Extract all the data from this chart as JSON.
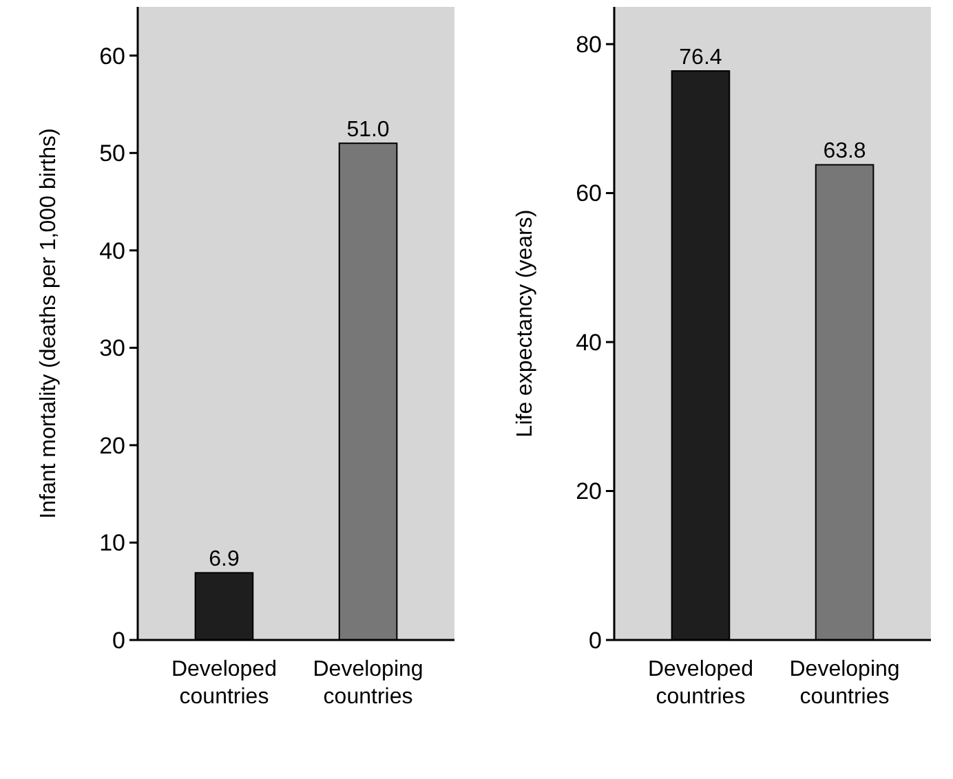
{
  "chart_data": [
    {
      "type": "bar",
      "ylabel": "Infant mortality (deaths per 1,000 births)",
      "categories": [
        "Developed\ncountries",
        "Developing\ncountries"
      ],
      "values": [
        6.9,
        51.0
      ],
      "colors": [
        "#1e1e1e",
        "#777777"
      ],
      "value_labels": [
        "6.9",
        "51.0"
      ],
      "ylim": [
        0,
        65
      ],
      "yticks": [
        0,
        10,
        20,
        30,
        40,
        50,
        60
      ],
      "grid": false
    },
    {
      "type": "bar",
      "ylabel": "Life expectancy (years)",
      "categories": [
        "Developed\ncountries",
        "Developing\ncountries"
      ],
      "values": [
        76.4,
        63.8
      ],
      "colors": [
        "#1e1e1e",
        "#777777"
      ],
      "value_labels": [
        "76.4",
        "63.8"
      ],
      "ylim": [
        0,
        85
      ],
      "yticks": [
        0,
        20,
        40,
        60,
        80
      ],
      "grid": false
    }
  ]
}
